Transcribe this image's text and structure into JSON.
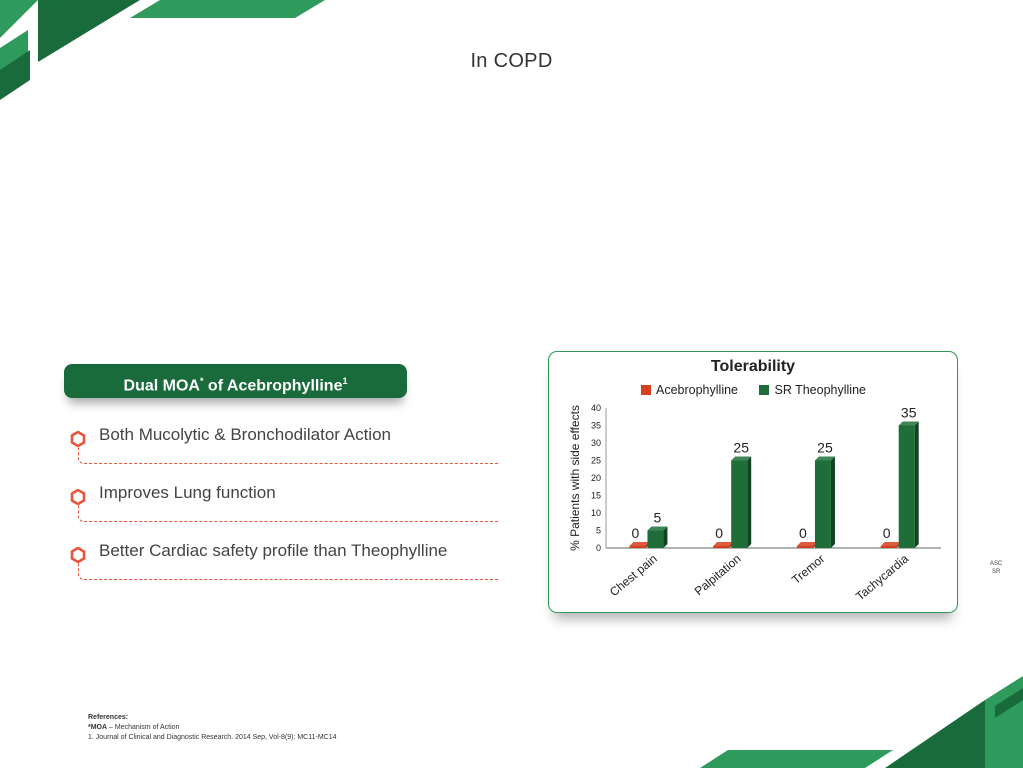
{
  "page": {
    "title": "In COPD"
  },
  "moa": {
    "label": "Dual MOA",
    "sup_star": "*",
    "label_rest": " of Acebrophylline",
    "sup_ref": "1"
  },
  "bullets": [
    "Both Mucolytic & Bronchodilator Action",
    "Improves Lung function",
    "Better Cardiac safety profile than Theophylline"
  ],
  "colors": {
    "brand_green": "#1a6b3c",
    "accent_orange": "#e8553a",
    "series_red": "#d7401e",
    "series_green": "#1f6e3a"
  },
  "chart_data": {
    "type": "bar",
    "title": "Tolerability",
    "ylabel": "% Patients with side effects",
    "xlabel": "",
    "categories": [
      "Chest pain",
      "Palpitation",
      "Tremor",
      "Tachycardia"
    ],
    "series": [
      {
        "name": "Acebrophylline",
        "values": [
          0,
          0,
          0,
          0
        ],
        "color": "#d7401e"
      },
      {
        "name": "SR Theophylline",
        "values": [
          5,
          25,
          25,
          35
        ],
        "color": "#1f6e3a"
      }
    ],
    "ylim": [
      0,
      40
    ],
    "yticks": [
      0,
      5,
      10,
      15,
      20,
      25,
      30,
      35,
      40
    ],
    "grid": false,
    "legend_position": "top"
  },
  "side_note": {
    "line1": "ASC",
    "line2": "SR"
  },
  "references": {
    "heading": "References:",
    "moa_abbr": "*MOA",
    "moa_def": " – Mechanism of Action",
    "ref1": "1. Journal of Clinical and Diagnostic Research. 2014 Sep, Vol-8(9): MC11-MC14"
  }
}
